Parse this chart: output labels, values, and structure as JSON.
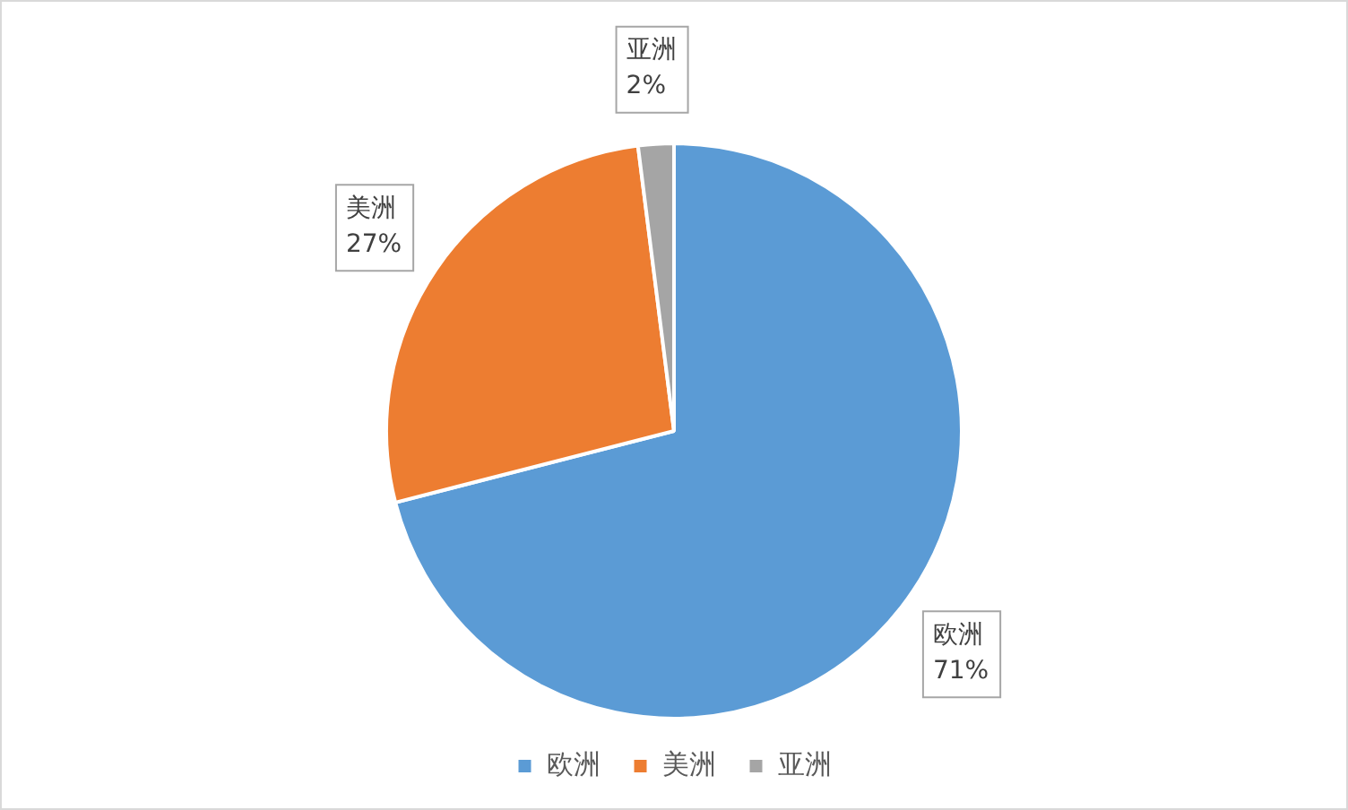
{
  "chart_data": {
    "type": "pie",
    "categories": [
      "欧洲",
      "美洲",
      "亚洲"
    ],
    "values": [
      71,
      27,
      2
    ],
    "colors": [
      "#5b9bd5",
      "#ed7d31",
      "#a5a5a5"
    ],
    "value_labels": [
      "71%",
      "27%",
      "2%"
    ],
    "legend": "bottom"
  }
}
